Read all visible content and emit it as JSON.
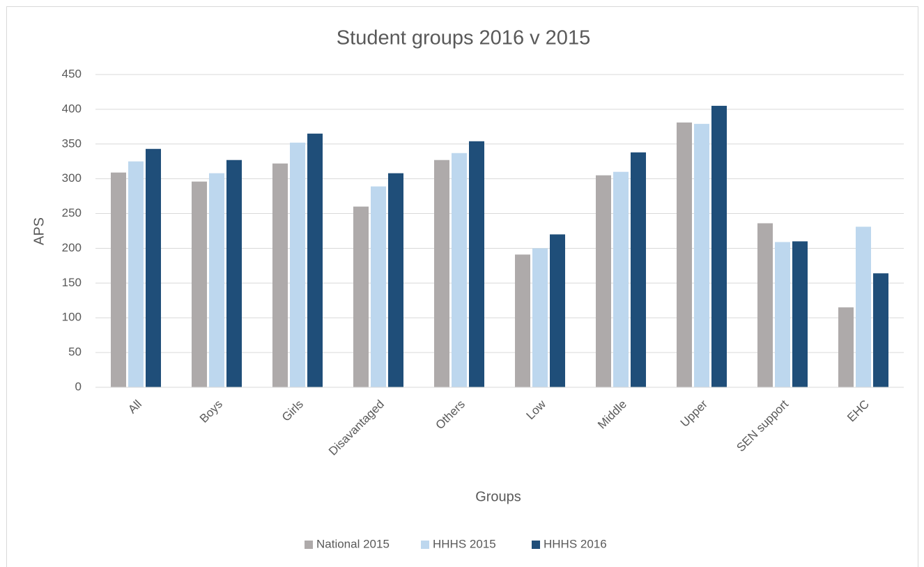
{
  "chart_data": {
    "type": "bar",
    "title": "Student groups 2016 v 2015",
    "x_label": "Groups",
    "y_label": "APS",
    "categories": [
      "All",
      "Boys",
      "Girls",
      "Disavantaged",
      "Others",
      "Low",
      "Middle",
      "Upper",
      "SEN support",
      "EHC"
    ],
    "series": [
      {
        "name": "National 2015",
        "color": "#aeaaaa",
        "values": [
          309,
          296,
          322,
          260,
          327,
          191,
          305,
          381,
          236,
          115
        ]
      },
      {
        "name": "HHHS 2015",
        "color": "#bdd7ee",
        "values": [
          325,
          308,
          352,
          289,
          337,
          200,
          310,
          379,
          209,
          231
        ]
      },
      {
        "name": "HHHS 2016",
        "color": "#1f4e79",
        "values": [
          343,
          327,
          365,
          308,
          354,
          220,
          338,
          405,
          210,
          164
        ]
      }
    ],
    "ylim": [
      0,
      450
    ],
    "yticks": [
      0,
      50,
      100,
      150,
      200,
      250,
      300,
      350,
      400,
      450
    ],
    "grid": true,
    "legend": "bottom"
  }
}
